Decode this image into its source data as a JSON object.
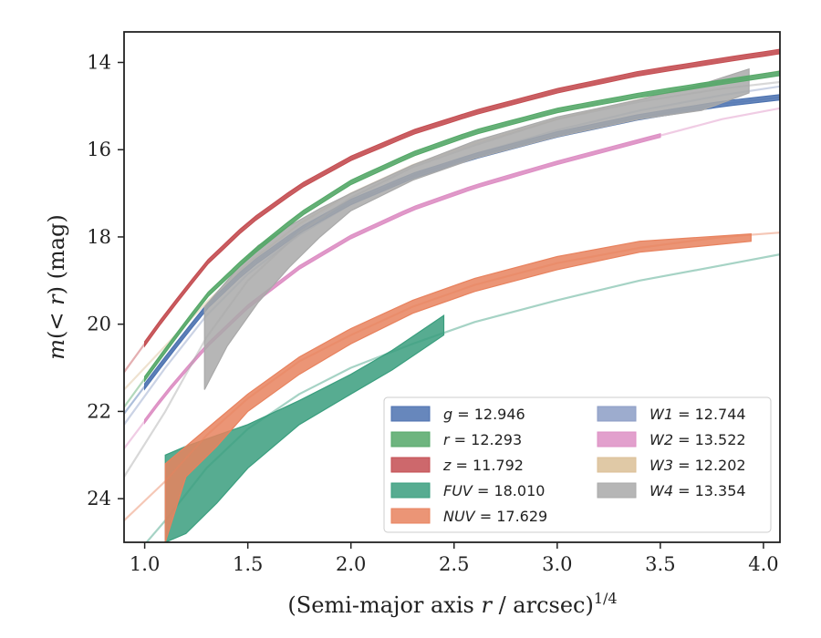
{
  "chart_data": {
    "type": "line",
    "xlabel_main": "(Semi-major axis ",
    "xlabel_var": "r",
    "xlabel_tail": " / arcsec)",
    "xlabel_sup": "1/4",
    "ylabel_main": "m",
    "ylabel_paren": "(< ",
    "ylabel_var": "r",
    "ylabel_tail": ") (mag)",
    "xlim": [
      0.9,
      4.08
    ],
    "ylim": [
      25.0,
      13.3
    ],
    "y_inverted": true,
    "xticks": [
      1.0,
      1.5,
      2.0,
      2.5,
      3.0,
      3.5,
      4.0
    ],
    "xtick_labels": [
      "1.0",
      "1.5",
      "2.0",
      "2.5",
      "3.0",
      "3.5",
      "4.0"
    ],
    "yticks": [
      14,
      16,
      18,
      20,
      22,
      24
    ],
    "ytick_labels": [
      "14",
      "16",
      "18",
      "20",
      "22",
      "24"
    ],
    "grid": false,
    "legend_position": "lower-right",
    "series": [
      {
        "band": "g",
        "value": "12.946",
        "color": "#4c72b0",
        "x": [
          0.9,
          1.1,
          1.3,
          1.5,
          1.75,
          2.0,
          2.3,
          2.6,
          3.0,
          3.4,
          3.8,
          4.08
        ],
        "y": [
          22.05,
          20.8,
          19.6,
          18.7,
          17.85,
          17.2,
          16.6,
          16.15,
          15.65,
          15.25,
          14.95,
          14.8
        ],
        "band_x_end": 4.08,
        "band_width": 0.12
      },
      {
        "band": "r",
        "value": "12.293",
        "color": "#55a868",
        "x": [
          0.9,
          1.1,
          1.3,
          1.5,
          1.75,
          2.0,
          2.3,
          2.6,
          3.0,
          3.4,
          3.8,
          4.08
        ],
        "y": [
          21.9,
          20.6,
          19.35,
          18.45,
          17.5,
          16.75,
          16.1,
          15.6,
          15.1,
          14.75,
          14.45,
          14.25
        ],
        "band_x_end": 4.08,
        "band_width": 0.1
      },
      {
        "band": "z",
        "value": "11.792",
        "color": "#c44e52",
        "x": [
          0.9,
          1.1,
          1.3,
          1.5,
          1.75,
          2.0,
          2.3,
          2.6,
          3.0,
          3.4,
          3.8,
          4.08
        ],
        "y": [
          21.1,
          19.8,
          18.6,
          17.7,
          16.85,
          16.2,
          15.6,
          15.15,
          14.65,
          14.25,
          13.95,
          13.75
        ],
        "band_x_end": 4.08,
        "band_width": 0.1
      },
      {
        "band": "FUV",
        "value": "18.010",
        "color": "#3a9e7e",
        "x": [
          0.9,
          1.1,
          1.3,
          1.5,
          1.75,
          2.0,
          2.3,
          2.6,
          3.0,
          3.4,
          3.8,
          4.08
        ],
        "y": [
          25.6,
          24.5,
          23.3,
          22.4,
          21.6,
          21.0,
          20.45,
          19.95,
          19.45,
          19.0,
          18.65,
          18.4
        ],
        "band_x": [
          1.1,
          1.2,
          1.35,
          1.5,
          1.75,
          2.0,
          2.2,
          2.45
        ],
        "band_upper": [
          23.0,
          22.8,
          22.55,
          22.3,
          21.75,
          21.15,
          20.6,
          19.8
        ],
        "band_lower": [
          25.0,
          24.8,
          24.1,
          23.3,
          22.3,
          21.6,
          21.05,
          20.25
        ]
      },
      {
        "band": "NUV",
        "value": "17.629",
        "color": "#e8825e",
        "x": [
          0.9,
          1.1,
          1.3,
          1.5,
          1.75,
          2.0,
          2.3,
          2.6,
          3.0,
          3.4,
          3.8,
          4.08
        ],
        "y": [
          24.5,
          23.6,
          22.55,
          21.7,
          20.85,
          20.25,
          19.6,
          19.1,
          18.6,
          18.25,
          18.0,
          17.9
        ],
        "band_x": [
          1.1,
          1.2,
          1.35,
          1.5,
          1.75,
          2.0,
          2.3,
          2.6,
          3.0,
          3.4,
          3.94
        ],
        "band_upper": [
          23.2,
          22.8,
          22.2,
          21.6,
          20.75,
          20.1,
          19.45,
          18.95,
          18.45,
          18.1,
          17.93
        ],
        "band_lower": [
          25.0,
          23.5,
          22.8,
          22.0,
          21.15,
          20.45,
          19.75,
          19.25,
          18.75,
          18.35,
          18.1
        ]
      },
      {
        "band": "W1",
        "value": "12.744",
        "color": "#8c9dc5",
        "x": [
          0.9,
          1.1,
          1.3,
          1.5,
          1.75,
          2.0,
          2.3,
          2.6,
          3.0,
          3.4,
          3.8,
          4.08
        ],
        "y": [
          22.3,
          21.0,
          19.8,
          18.85,
          17.95,
          17.25,
          16.6,
          16.1,
          15.55,
          15.1,
          14.75,
          14.55
        ]
      },
      {
        "band": "W2",
        "value": "13.522",
        "color": "#dd8fc4",
        "x": [
          0.9,
          1.1,
          1.3,
          1.5,
          1.75,
          2.0,
          2.3,
          2.6,
          3.0,
          3.4,
          3.8,
          4.08
        ],
        "y": [
          22.85,
          21.6,
          20.5,
          19.6,
          18.7,
          18.0,
          17.35,
          16.85,
          16.3,
          15.8,
          15.3,
          15.05
        ],
        "band_x_end": 3.5,
        "band_width": 0.08
      },
      {
        "band": "W3",
        "value": "12.202",
        "color": "#dbbf96",
        "x": [
          0.9,
          1.1,
          1.3,
          1.5,
          1.75,
          2.0,
          2.3,
          2.6,
          3.0,
          3.4,
          3.8,
          4.08
        ],
        "y": [
          21.5,
          20.5,
          19.5,
          18.6,
          17.7,
          17.0,
          16.35,
          15.85,
          15.3,
          14.85,
          14.45,
          14.2
        ]
      },
      {
        "band": "W4",
        "value": "13.354",
        "color": "#a9a9a9",
        "x": [
          0.9,
          1.1,
          1.3,
          1.5,
          1.75,
          2.0,
          2.3,
          2.6,
          3.0,
          3.4,
          3.8,
          4.08
        ],
        "y": [
          23.5,
          22.0,
          20.3,
          19.0,
          17.9,
          17.1,
          16.4,
          15.9,
          15.3,
          14.9,
          14.6,
          14.45
        ],
        "band_x": [
          1.29,
          1.4,
          1.55,
          1.7,
          1.85,
          2.0,
          2.3,
          2.6,
          3.0,
          3.4,
          3.7,
          3.93
        ],
        "band_upper": [
          19.6,
          19.0,
          18.2,
          17.75,
          17.35,
          17.0,
          16.35,
          15.8,
          15.25,
          14.85,
          14.5,
          14.15
        ],
        "band_lower": [
          21.5,
          20.5,
          19.5,
          18.7,
          18.0,
          17.4,
          16.7,
          16.2,
          15.7,
          15.3,
          15.1,
          14.7
        ]
      }
    ]
  }
}
